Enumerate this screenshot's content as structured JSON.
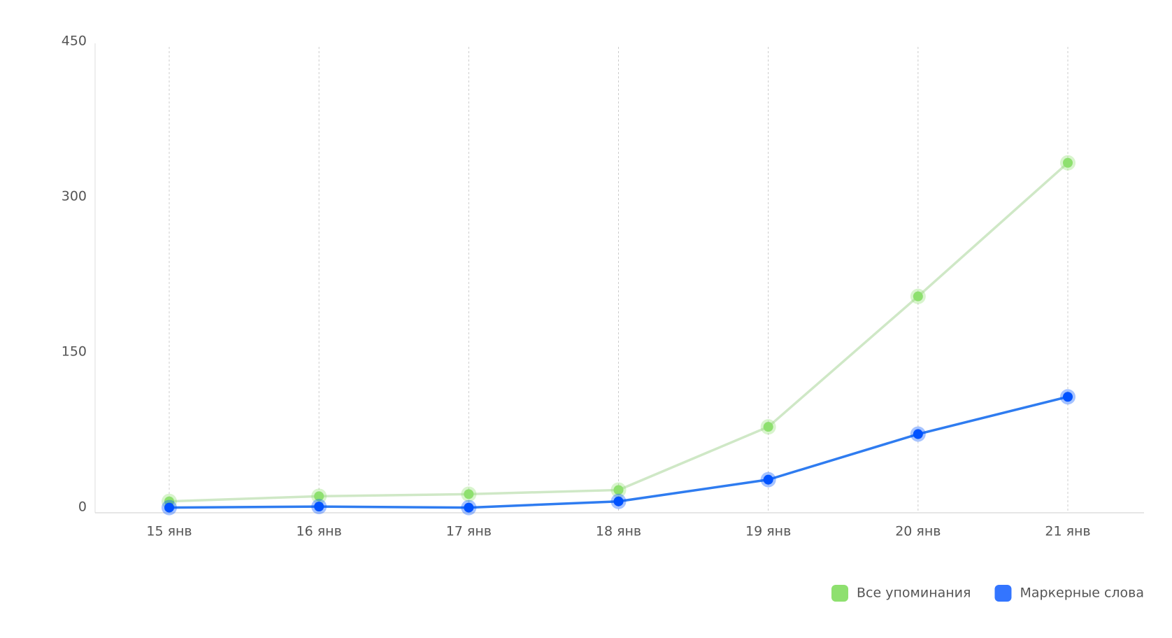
{
  "chart_data": {
    "type": "line",
    "categories": [
      "15 янв",
      "16 янв",
      "17 янв",
      "18 янв",
      "19 янв",
      "20 янв",
      "21 янв"
    ],
    "series": [
      {
        "name": "Все упоминания",
        "color": "#8ee06f",
        "line_color": "#cfe8c6",
        "values": [
          11,
          16,
          18,
          22,
          83,
          209,
          338
        ]
      },
      {
        "name": "Маркерные слова",
        "color": "#0052ff",
        "line_color": "#2f7cf0",
        "values": [
          5,
          6,
          5,
          11,
          32,
          76,
          112
        ]
      }
    ],
    "ylim": [
      0,
      450
    ],
    "yticks": [
      0,
      150,
      300,
      450
    ],
    "grid": true,
    "legend": "bottom-right"
  }
}
